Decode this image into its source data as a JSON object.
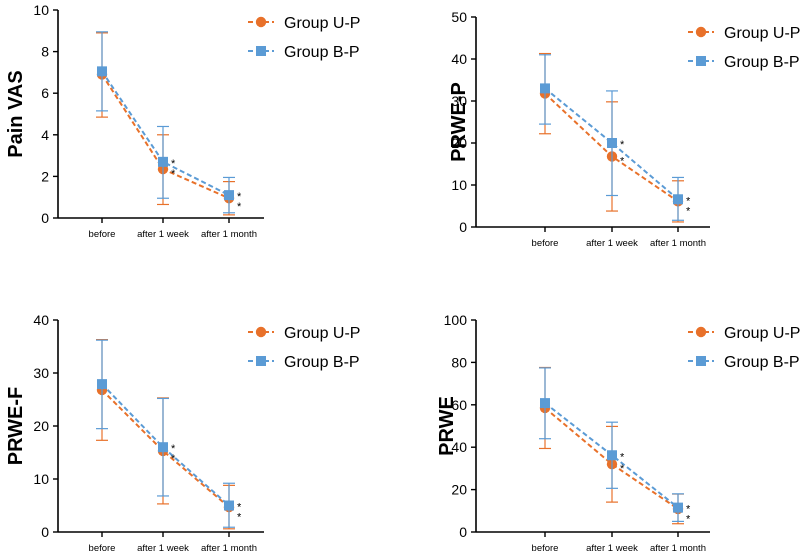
{
  "chart_data": [
    {
      "type": "line",
      "ylabel": "Pain VAS",
      "ylim": [
        0,
        10
      ],
      "yticks": [
        0,
        2,
        4,
        6,
        8,
        10
      ],
      "categories": [
        "before",
        "after 1 week",
        "after 1 month"
      ],
      "legend_position": "top-right",
      "significance_marker": "*",
      "series": [
        {
          "name": "Group U-P",
          "color": "#E8712A",
          "marker": "circle",
          "values": [
            6.9,
            2.35,
            0.95
          ],
          "err_lo": [
            4.85,
            0.65,
            0.15
          ],
          "err_hi": [
            8.9,
            4.0,
            1.75
          ]
        },
        {
          "name": "Group B-P",
          "color": "#5B9BD5",
          "marker": "square",
          "values": [
            7.05,
            2.7,
            1.1
          ],
          "err_lo": [
            5.15,
            0.95,
            0.25
          ],
          "err_hi": [
            8.95,
            4.4,
            1.95
          ]
        }
      ]
    },
    {
      "type": "line",
      "ylabel": "PRWE-P",
      "ylim": [
        0,
        50
      ],
      "yticks": [
        0,
        10,
        20,
        30,
        40,
        50
      ],
      "categories": [
        "before",
        "after 1 week",
        "after 1 month"
      ],
      "legend_position": "top-right",
      "significance_marker": "*",
      "series": [
        {
          "name": "Group U-P",
          "color": "#E8712A",
          "marker": "circle",
          "values": [
            31.8,
            16.8,
            6.1
          ],
          "err_lo": [
            22.2,
            3.8,
            1.2
          ],
          "err_hi": [
            41.3,
            29.8,
            11.0
          ]
        },
        {
          "name": "Group B-P",
          "color": "#5B9BD5",
          "marker": "square",
          "values": [
            33.0,
            20.0,
            6.6
          ],
          "err_lo": [
            24.5,
            7.5,
            1.6
          ],
          "err_hi": [
            41.0,
            32.4,
            11.8
          ]
        }
      ]
    },
    {
      "type": "line",
      "ylabel": "PRWE-F",
      "ylim": [
        0,
        40
      ],
      "yticks": [
        0,
        10,
        20,
        30,
        40
      ],
      "categories": [
        "before",
        "after 1 week",
        "after 1 month"
      ],
      "legend_position": "top-right",
      "significance_marker": "*",
      "series": [
        {
          "name": "Group U-P",
          "color": "#E8712A",
          "marker": "circle",
          "values": [
            26.8,
            15.3,
            4.7
          ],
          "err_lo": [
            17.3,
            5.3,
            0.6
          ],
          "err_hi": [
            36.3,
            25.3,
            8.8
          ]
        },
        {
          "name": "Group B-P",
          "color": "#5B9BD5",
          "marker": "square",
          "values": [
            27.9,
            16.0,
            5.0
          ],
          "err_lo": [
            19.5,
            6.8,
            0.9
          ],
          "err_hi": [
            36.2,
            25.2,
            9.2
          ]
        }
      ]
    },
    {
      "type": "line",
      "ylabel": "PRWE",
      "ylim": [
        0,
        100
      ],
      "yticks": [
        0,
        20,
        40,
        60,
        80,
        100
      ],
      "categories": [
        "before",
        "after 1 week",
        "after 1 month"
      ],
      "legend_position": "top-right",
      "significance_marker": "*",
      "series": [
        {
          "name": "Group U-P",
          "color": "#E8712A",
          "marker": "circle",
          "values": [
            58.5,
            32.0,
            10.9
          ],
          "err_lo": [
            39.4,
            14.1,
            3.9
          ],
          "err_hi": [
            77.6,
            49.8,
            17.9
          ]
        },
        {
          "name": "Group B-P",
          "color": "#5B9BD5",
          "marker": "square",
          "values": [
            60.8,
            36.2,
            11.5
          ],
          "err_lo": [
            44.0,
            20.6,
            5.0
          ],
          "err_hi": [
            77.4,
            51.8,
            18.0
          ]
        }
      ]
    }
  ]
}
